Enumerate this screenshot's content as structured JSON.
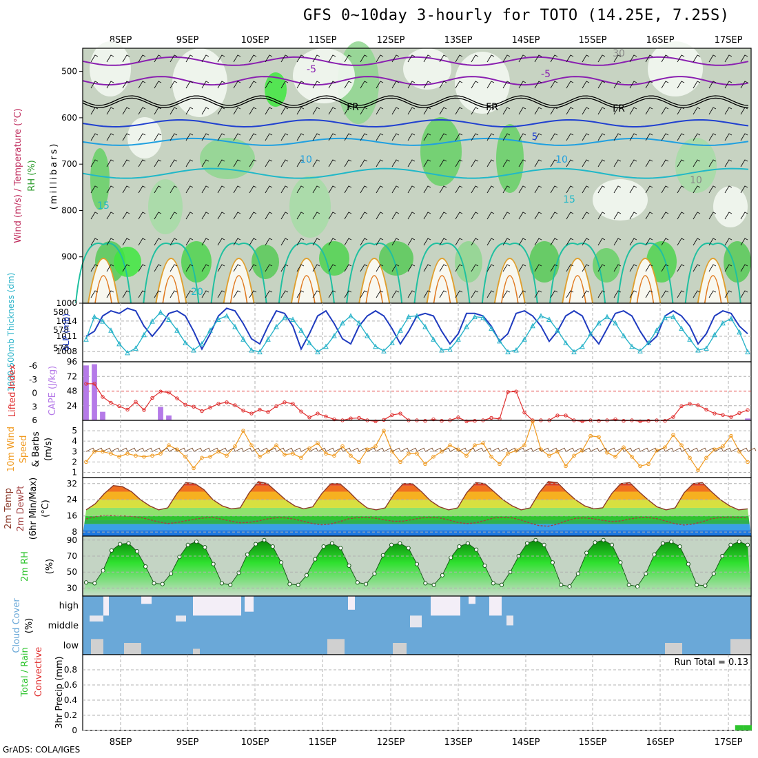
{
  "title": "GFS 0~10day 3-hourly for TOTO (14.25E, 7.25S)",
  "credit": "GrADS: COLA/IGES",
  "run_total_label": "Run Total = 0.13",
  "date_labels": [
    "8SEP",
    "9SEP",
    "10SEP",
    "11SEP",
    "12SEP",
    "13SEP",
    "14SEP",
    "15SEP",
    "16SEP",
    "17SEP"
  ],
  "colors": {
    "frame": "#000000",
    "grid": "#b0b0b0",
    "thickness": "#29b3c9",
    "slp": "#1f3bbf",
    "lifted": "#e03030",
    "cape": "#b57ae8",
    "wind": "#f09a20",
    "temp_line": "#8b3a2a",
    "rh_fill": "#2ec42e",
    "cloud": "#6aa8d8",
    "cloud_clear": "#f3eef7",
    "precip": "#2ec42e"
  },
  "chart_data": [
    {
      "type": "heatmap",
      "name": "upper",
      "ylabel_lines": [
        "Wind (m/s)",
        "Temperature (°C)",
        "RH (%)"
      ],
      "ylabel_units": "(millibars)",
      "yticks": [
        500,
        600,
        700,
        800,
        900,
        1000
      ],
      "contour_labels": [
        "-5",
        "-5",
        "FR",
        "FR",
        "FR",
        "5",
        "10",
        "10",
        "15",
        "15",
        "20",
        "30",
        "10"
      ]
    },
    {
      "type": "line",
      "name": "thickness_slp",
      "ylabel_left": "1000-500mb Thickness (dm)",
      "ylabel_right": "SLP (mb)",
      "left_ticks": [
        576,
        578,
        580
      ],
      "right_ticks": [
        1008,
        1011,
        1014
      ],
      "slp_series": [
        1011,
        1012,
        1015,
        1016,
        1015.5,
        1016.5,
        1016,
        1013,
        1011,
        1013,
        1015.5,
        1016,
        1015,
        1012,
        1008.5,
        1011.5,
        1015,
        1016.5,
        1016,
        1013.5,
        1010.5,
        1009.5,
        1013,
        1016,
        1015.5,
        1013,
        1008.5,
        1011.5,
        1015,
        1016,
        1013.5,
        1010.5,
        1009.5,
        1013,
        1015,
        1016,
        1015,
        1012.5,
        1009.5,
        1012,
        1015,
        1015.5,
        1015,
        1012,
        1009.5,
        1011.5,
        1015.5,
        1015.5,
        1015,
        1013,
        1010,
        1011.5,
        1015.5,
        1016,
        1015,
        1013,
        1010,
        1012,
        1015,
        1016,
        1015,
        1011.5,
        1009.5,
        1012.5,
        1015.5,
        1016,
        1015,
        1012,
        1009.5,
        1011,
        1015,
        1016,
        1015,
        1013,
        1009.5,
        1011.5,
        1015,
        1016,
        1015.5,
        1013,
        1011.5
      ],
      "thickness_series": [
        577,
        579.5,
        579,
        578,
        576.5,
        575.5,
        576,
        577.5,
        579,
        580,
        579.2,
        578,
        576.6,
        575.8,
        576.5,
        578,
        579.2,
        579.6,
        578.4,
        577,
        575.8,
        575.6,
        577,
        578.4,
        579.4,
        579.2,
        578,
        576.6,
        575.6,
        576.2,
        577.4,
        578.8,
        579.6,
        578.8,
        577.4,
        576.2,
        575.7,
        576.6,
        578,
        579.5,
        579.6,
        578.4,
        577,
        575.8,
        575.9,
        577,
        578.4,
        579.5,
        579.4,
        578.2,
        576.8,
        575.6,
        575.8,
        577,
        578.5,
        579.6,
        579.2,
        578,
        576.6,
        575.6,
        576.2,
        577.6,
        578.8,
        579.5,
        578.8,
        577.4,
        576.2,
        575.7,
        576.6,
        578,
        579.4,
        579.5,
        578.2,
        577,
        575.8,
        576,
        577.5,
        578.8,
        579.3,
        577.8,
        575.6
      ]
    },
    {
      "type": "bar",
      "name": "cape_lifted",
      "ylabel_left": "Lifted Index",
      "ylabel_right": "CAPE (J/kg)",
      "left_ticks": [
        "-6",
        "-3",
        "0",
        "3",
        "6"
      ],
      "right_ticks": [
        24,
        48,
        72,
        96
      ],
      "cape_values": [
        90,
        92,
        14,
        0,
        0,
        0,
        0,
        0,
        0,
        22,
        8,
        0,
        0,
        0,
        0,
        0,
        0,
        0,
        0,
        0,
        0,
        0,
        0,
        0,
        0,
        0,
        0,
        0,
        0,
        0,
        0,
        0,
        0,
        0,
        0,
        0,
        0,
        0,
        0,
        0,
        0,
        0,
        0,
        0,
        0,
        0,
        0,
        0,
        0,
        0,
        0,
        0,
        0,
        0,
        0,
        0,
        0,
        0,
        0,
        0,
        0,
        0,
        0,
        0,
        0,
        0,
        0,
        0,
        0,
        0,
        0,
        0,
        0,
        0,
        0,
        0,
        0,
        0,
        0,
        0,
        3
      ],
      "lifted_index": [
        -1.5,
        -1.5,
        1.2,
        2.4,
        3.1,
        3.8,
        2.2,
        3.9,
        1.4,
        0.1,
        0.3,
        1.5,
        2.8,
        3.2,
        4.1,
        3.4,
        2.6,
        2.3,
        2.9,
        4.0,
        4.6,
        3.8,
        4.3,
        3.1,
        2.3,
        2.6,
        4.2,
        5.4,
        4.6,
        5.2,
        5.8,
        6.0,
        5.6,
        5.5,
        6.0,
        6.2,
        5.9,
        4.9,
        4.6,
        6.0,
        6.0,
        6.1,
        5.8,
        6.1,
        6.0,
        5.4,
        6.2,
        6.1,
        6.0,
        5.5,
        5.7,
        0.2,
        0.1,
        4.4,
        6.0,
        6.0,
        6.0,
        5.0,
        5.0,
        6.0,
        6.2,
        6.0,
        6.1,
        6.0,
        5.8,
        6.1,
        6.0,
        6.2,
        6.1,
        6.0,
        6.1,
        5.3,
        3.1,
        2.6,
        2.9,
        3.8,
        4.6,
        4.9,
        5.3,
        4.5,
        3.9
      ]
    },
    {
      "type": "line",
      "name": "wind",
      "ylabel_lines": [
        "10m Wind",
        "Speed",
        "& Barbs",
        "(m/s)"
      ],
      "yticks": [
        1,
        2,
        3,
        4,
        5
      ],
      "values": [
        2,
        3,
        3,
        2.8,
        2.5,
        2.8,
        2.6,
        2.5,
        2.6,
        2.8,
        3.6,
        3.2,
        2.5,
        1.4,
        2.4,
        2.5,
        3.0,
        2.6,
        3.5,
        5.0,
        3.6,
        2.5,
        3.0,
        3.6,
        2.7,
        2.8,
        2.4,
        3.3,
        3.8,
        2.8,
        2.6,
        3.5,
        2.6,
        2.0,
        3.2,
        3.5,
        5.0,
        3.0,
        2.0,
        2.8,
        2.8,
        1.8,
        2.5,
        3.0,
        3.6,
        3.2,
        2.6,
        3.6,
        3.8,
        2.5,
        1.8,
        2.8,
        3.1,
        3.6,
        5.9,
        3.2,
        2.6,
        3.0,
        1.6,
        2.6,
        3.1,
        4.5,
        4.4,
        2.9,
        2.5,
        3.4,
        2.5,
        1.6,
        1.8,
        3.1,
        3.4,
        4.6,
        3.6,
        2.4,
        1.2,
        2.4,
        3.2,
        3.5,
        4.5,
        3.0,
        2.0
      ]
    },
    {
      "type": "area",
      "name": "temperature",
      "ylabel_lines": [
        "2m Temp",
        "2m DewPt",
        "(6hr Min/Max)",
        "(°C)"
      ],
      "yticks": [
        8,
        16,
        24,
        32
      ],
      "temp_values": [
        19,
        22,
        27,
        31,
        30.5,
        28,
        24,
        21,
        19,
        20,
        27,
        32.5,
        32,
        29,
        24,
        21,
        19.5,
        20,
        27.5,
        33,
        32,
        28,
        24,
        21,
        19.5,
        20.5,
        27,
        32,
        32,
        28,
        23.5,
        20,
        19,
        20,
        27,
        32,
        32,
        28,
        23.5,
        20.5,
        19,
        20,
        27.5,
        32.5,
        32,
        28,
        24,
        21,
        19,
        20,
        27.5,
        33,
        32.5,
        28,
        24,
        21,
        19.5,
        20,
        27,
        32,
        32.5,
        28,
        24,
        20.5,
        19,
        20,
        27.5,
        32,
        32.5,
        28,
        24,
        21,
        19,
        19.5
      ],
      "dewpoint_values": [
        14.5,
        15.6,
        16.2,
        16.1,
        16,
        15.8,
        15.2,
        14.2,
        13,
        12.2,
        12.7,
        13.6,
        14.4,
        15,
        15.2,
        14.4,
        13.4,
        12.6,
        12.8,
        13.5,
        14.5,
        15.1,
        15.0,
        14.4,
        13.3,
        12.2,
        11.6,
        12.0,
        13.2,
        14.6,
        15.2,
        15.3,
        14.8,
        14.0,
        13.3,
        13.4,
        14.2,
        15.0,
        15.3,
        15.0,
        14.0,
        12.8,
        12.2,
        12.6,
        13.7,
        15.0,
        15.3,
        15.0,
        14.0,
        12.4,
        11.2,
        10.9,
        11.9,
        13.6,
        14.8,
        15.0,
        14.6,
        13.8,
        13.2,
        13.5,
        14.5,
        15.1,
        15.2,
        14.6,
        13.4,
        12.1,
        11.5,
        12.0,
        13.1,
        14.6,
        15.2,
        15.4,
        15.3,
        15.0
      ]
    },
    {
      "type": "area",
      "name": "relative_humidity",
      "ylabel_lines": [
        "2m RH",
        "(%)"
      ],
      "yticks": [
        30,
        50,
        70,
        90
      ],
      "values": [
        37,
        36,
        52,
        77,
        85,
        86,
        76,
        57,
        36,
        35,
        48,
        69,
        84,
        88,
        81,
        60,
        36,
        34,
        49,
        72,
        85,
        90,
        82,
        62,
        35,
        34,
        46,
        66,
        82,
        86,
        80,
        58,
        37,
        35,
        48,
        71,
        84,
        86,
        80,
        60,
        36,
        34,
        46,
        68,
        82,
        86,
        78,
        58,
        36,
        34,
        50,
        70,
        86,
        90,
        84,
        62,
        34,
        32,
        48,
        74,
        87,
        90,
        84,
        62,
        34,
        32,
        48,
        72,
        86,
        88,
        82,
        60,
        34,
        33,
        48,
        70,
        84,
        88,
        84
      ]
    },
    {
      "type": "bar",
      "name": "cloud_cover",
      "ylabel_lines": [
        "Cloud Cover",
        "(%)"
      ],
      "layers": [
        "high",
        "middle",
        "low"
      ]
    },
    {
      "type": "bar",
      "name": "precipitation",
      "ylabel_lines": [
        "Total / Rain",
        "Convective",
        "3hr Precip (mm)"
      ],
      "yticks": [
        0,
        0.2,
        0.4,
        0.6,
        0.8
      ],
      "values": [
        0,
        0,
        0,
        0,
        0,
        0,
        0,
        0,
        0,
        0,
        0,
        0,
        0,
        0,
        0,
        0,
        0,
        0,
        0,
        0,
        0,
        0,
        0,
        0,
        0,
        0,
        0,
        0,
        0,
        0,
        0,
        0,
        0,
        0,
        0,
        0,
        0,
        0,
        0,
        0,
        0,
        0,
        0,
        0,
        0,
        0,
        0,
        0,
        0,
        0,
        0,
        0,
        0,
        0,
        0,
        0,
        0,
        0,
        0,
        0,
        0,
        0,
        0,
        0,
        0,
        0,
        0,
        0,
        0,
        0,
        0,
        0,
        0,
        0,
        0,
        0,
        0,
        0,
        0.07,
        0.07
      ]
    }
  ]
}
